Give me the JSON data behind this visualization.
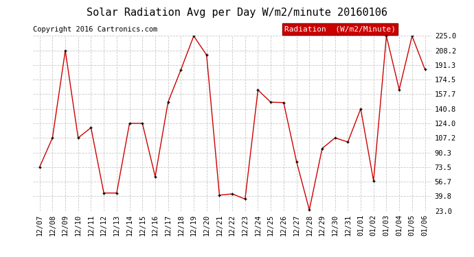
{
  "title": "Solar Radiation Avg per Day W/m2/minute 20160106",
  "copyright": "Copyright 2016 Cartronics.com",
  "legend_label": "Radiation  (W/m2/Minute)",
  "dates": [
    "12/07",
    "12/08",
    "12/09",
    "12/10",
    "12/11",
    "12/12",
    "12/13",
    "12/14",
    "12/15",
    "12/16",
    "12/17",
    "12/18",
    "12/19",
    "12/20",
    "12/21",
    "12/22",
    "12/23",
    "12/24",
    "12/25",
    "12/26",
    "12/27",
    "12/28",
    "12/29",
    "12/30",
    "12/31",
    "01/01",
    "01/02",
    "01/03",
    "01/04",
    "01/05",
    "01/06"
  ],
  "values": [
    73.5,
    107.2,
    208.2,
    107.2,
    119.0,
    43.5,
    43.5,
    124.0,
    124.0,
    62.5,
    148.5,
    186.0,
    225.0,
    203.0,
    41.0,
    42.5,
    36.5,
    162.5,
    148.5,
    148.0,
    80.0,
    24.0,
    95.0,
    107.2,
    102.5,
    140.8,
    57.5,
    225.0,
    163.0,
    225.0,
    186.5
  ],
  "ylim_min": 23.0,
  "ylim_max": 225.0,
  "yticks": [
    23.0,
    39.8,
    56.7,
    73.5,
    90.3,
    107.2,
    124.0,
    140.8,
    157.7,
    174.5,
    191.3,
    208.2,
    225.0
  ],
  "line_color": "#cc0000",
  "marker_color": "#000000",
  "bg_color": "#ffffff",
  "grid_color": "#c8c8c8",
  "title_fontsize": 11,
  "copyright_fontsize": 7.5,
  "tick_fontsize": 7.5,
  "legend_bg": "#cc0000",
  "legend_text_color": "#ffffff",
  "legend_fontsize": 8
}
